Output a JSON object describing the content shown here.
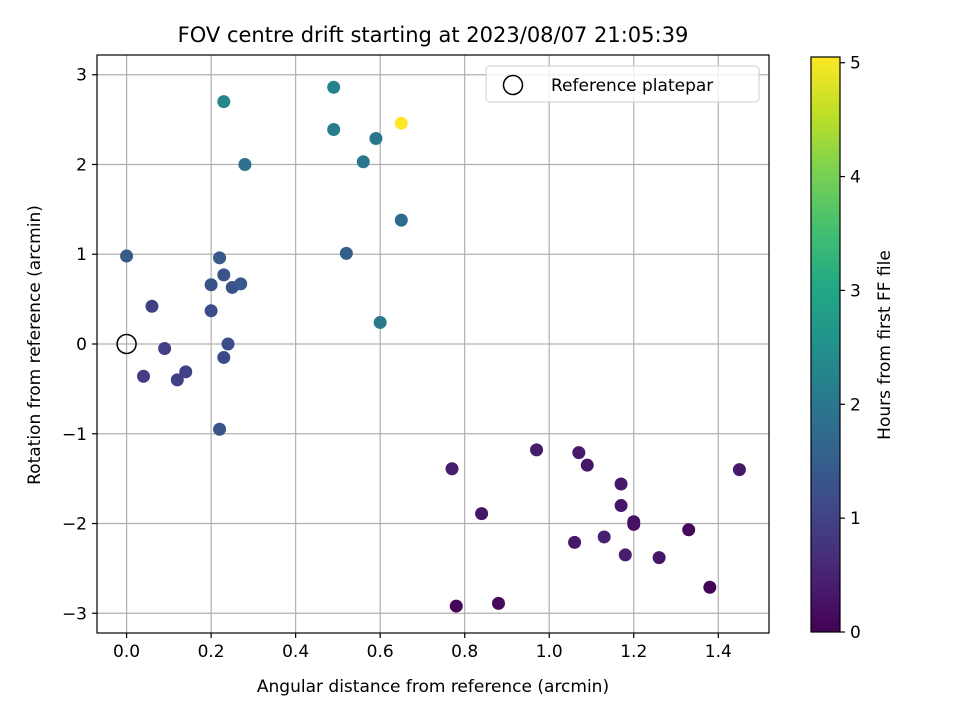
{
  "chart_data": {
    "type": "scatter",
    "title": "FOV centre drift starting at 2023/08/07 21:05:39",
    "xlabel": "Angular distance from reference (arcmin)",
    "ylabel": "Rotation from reference (arcmin)",
    "xlim": [
      -0.07,
      1.52
    ],
    "ylim": [
      -3.22,
      3.22
    ],
    "x_ticks": [
      0.0,
      0.2,
      0.4,
      0.6,
      0.8,
      1.0,
      1.2,
      1.4
    ],
    "x_tick_labels": [
      "0.0",
      "0.2",
      "0.4",
      "0.6",
      "0.8",
      "1.0",
      "1.2",
      "1.4"
    ],
    "y_ticks": [
      -3,
      -2,
      -1,
      0,
      1,
      2,
      3
    ],
    "y_tick_labels": [
      "−3",
      "−2",
      "−1",
      "0",
      "1",
      "2",
      "3"
    ],
    "grid": true,
    "legend": {
      "placement": "upper right",
      "entries": [
        "Reference platepar"
      ]
    },
    "colorbar": {
      "label": "Hours from first FF file",
      "colormap": "viridis",
      "range": [
        0,
        5.05
      ],
      "ticks": [
        0,
        1,
        2,
        3,
        4,
        5
      ],
      "tick_labels": [
        "0",
        "1",
        "2",
        "3",
        "4",
        "5"
      ]
    },
    "reference_point": {
      "x": 0.0,
      "y": 0.0,
      "label": "Reference platepar"
    },
    "points": [
      {
        "x": 0.78,
        "y": -2.92,
        "c": 0.05
      },
      {
        "x": 0.88,
        "y": -2.89,
        "c": 0.1
      },
      {
        "x": 1.38,
        "y": -2.71,
        "c": 0.05
      },
      {
        "x": 1.26,
        "y": -2.38,
        "c": 0.3
      },
      {
        "x": 1.18,
        "y": -2.35,
        "c": 0.4
      },
      {
        "x": 1.06,
        "y": -2.21,
        "c": 0.35
      },
      {
        "x": 1.13,
        "y": -2.15,
        "c": 0.45
      },
      {
        "x": 1.2,
        "y": -2.01,
        "c": 0.2
      },
      {
        "x": 1.2,
        "y": -1.98,
        "c": 0.25
      },
      {
        "x": 1.33,
        "y": -2.07,
        "c": 0.1
      },
      {
        "x": 0.84,
        "y": -1.89,
        "c": 0.3
      },
      {
        "x": 1.17,
        "y": -1.8,
        "c": 0.3
      },
      {
        "x": 1.17,
        "y": -1.56,
        "c": 0.35
      },
      {
        "x": 0.77,
        "y": -1.39,
        "c": 0.4
      },
      {
        "x": 1.45,
        "y": -1.4,
        "c": 0.35
      },
      {
        "x": 1.09,
        "y": -1.35,
        "c": 0.3
      },
      {
        "x": 1.07,
        "y": -1.21,
        "c": 0.35
      },
      {
        "x": 0.97,
        "y": -1.18,
        "c": 0.4
      },
      {
        "x": 0.22,
        "y": -0.95,
        "c": 1.35
      },
      {
        "x": 0.12,
        "y": -0.4,
        "c": 0.95
      },
      {
        "x": 0.04,
        "y": -0.36,
        "c": 0.9
      },
      {
        "x": 0.14,
        "y": -0.31,
        "c": 1.0
      },
      {
        "x": 0.23,
        "y": -0.15,
        "c": 1.1
      },
      {
        "x": 0.09,
        "y": -0.05,
        "c": 0.95
      },
      {
        "x": 0.24,
        "y": 0.0,
        "c": 1.2
      },
      {
        "x": 0.06,
        "y": 0.42,
        "c": 0.95
      },
      {
        "x": 0.2,
        "y": 0.37,
        "c": 1.2
      },
      {
        "x": 0.25,
        "y": 0.63,
        "c": 1.3
      },
      {
        "x": 0.2,
        "y": 0.66,
        "c": 1.3
      },
      {
        "x": 0.27,
        "y": 0.67,
        "c": 1.4
      },
      {
        "x": 0.23,
        "y": 0.77,
        "c": 1.3
      },
      {
        "x": 0.22,
        "y": 0.96,
        "c": 1.4
      },
      {
        "x": 0.0,
        "y": 0.98,
        "c": 1.45
      },
      {
        "x": 0.52,
        "y": 1.01,
        "c": 1.5
      },
      {
        "x": 0.6,
        "y": 0.24,
        "c": 2.0
      },
      {
        "x": 0.65,
        "y": 1.38,
        "c": 1.75
      },
      {
        "x": 0.28,
        "y": 2.0,
        "c": 1.85
      },
      {
        "x": 0.56,
        "y": 2.03,
        "c": 2.0
      },
      {
        "x": 0.59,
        "y": 2.29,
        "c": 1.95
      },
      {
        "x": 0.49,
        "y": 2.39,
        "c": 2.15
      },
      {
        "x": 0.23,
        "y": 2.7,
        "c": 2.3
      },
      {
        "x": 0.49,
        "y": 2.86,
        "c": 2.25
      },
      {
        "x": 0.65,
        "y": 2.46,
        "c": 5.05
      }
    ]
  }
}
